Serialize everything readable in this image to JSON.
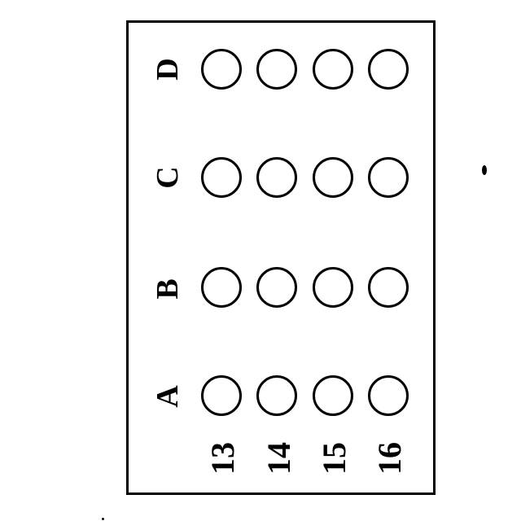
{
  "answer_sheet": {
    "choices": [
      "A",
      "B",
      "C",
      "D"
    ],
    "questions": [
      "13",
      "14",
      "15",
      "16"
    ]
  }
}
